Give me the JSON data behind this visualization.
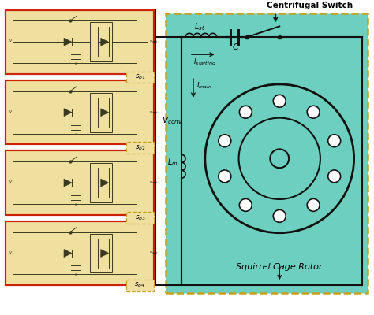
{
  "bg_color": "#ffffff",
  "cyan_bg": "#6dcfbf",
  "beige_box_color": "#f0e0a0",
  "red_border_color": "#cc2200",
  "dark_orange_border": "#c8a020",
  "centrifugal_switch_label": "Centrifugal Switch",
  "Lst_label": "L$_{st}$",
  "C_label": "C",
  "Istarting_label": "I$_{starting}$",
  "Imain_label": "I$_{main}$",
  "Vconv_label": "V$_{conv}$",
  "Lm_label": "L$_{m}$",
  "squirrel_label": "Squirrel Cage Rotor",
  "sb1_label": "s$_{b1}$",
  "sb2_label": "s$_{b2}$",
  "sb3_label": "s$_{b3}$",
  "sb4_label": "s$_{b4}$",
  "line_color": "#111111"
}
